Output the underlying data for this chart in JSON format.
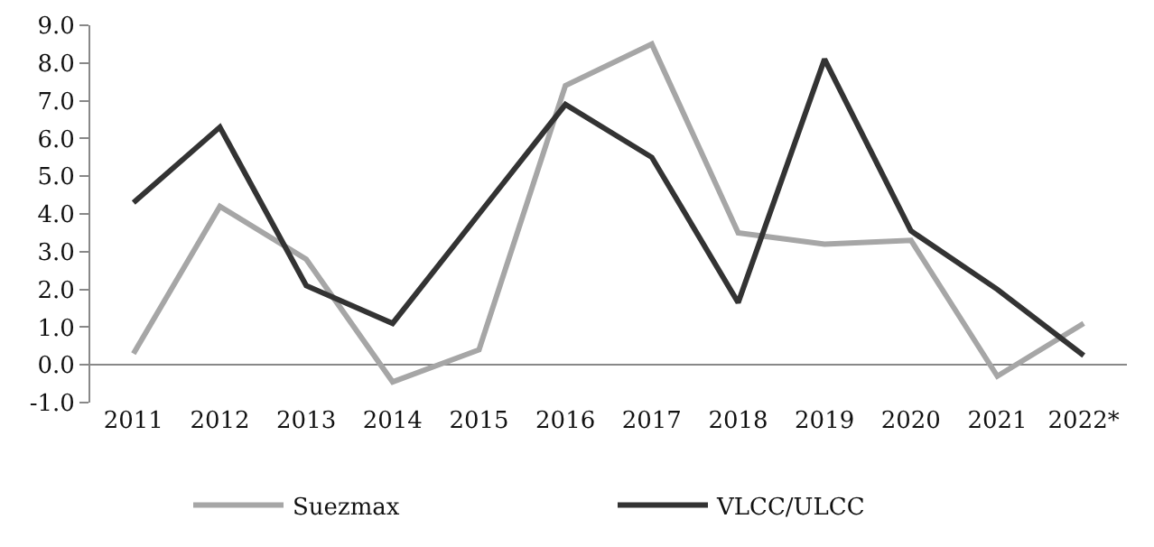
{
  "chart_data": {
    "type": "line",
    "categories": [
      "2011",
      "2012",
      "2013",
      "2014",
      "2015",
      "2016",
      "2017",
      "2018",
      "2019",
      "2020",
      "2021",
      "2022*"
    ],
    "series": [
      {
        "name": "Suezmax",
        "color": "#a6a6a6",
        "values": [
          0.3,
          4.2,
          2.8,
          -0.45,
          0.4,
          7.4,
          8.5,
          3.5,
          3.2,
          3.3,
          -0.3,
          1.1
        ]
      },
      {
        "name": "VLCC/ULCC",
        "color": "#333333",
        "values": [
          4.3,
          6.3,
          2.1,
          1.1,
          4.0,
          6.9,
          5.5,
          1.65,
          8.1,
          3.55,
          2.0,
          0.25
        ]
      }
    ],
    "ylim": [
      -1,
      9
    ],
    "yticks": [
      {
        "value": -1,
        "label": "-1.0"
      },
      {
        "value": 0,
        "label": "0.0"
      },
      {
        "value": 1,
        "label": "1.0"
      },
      {
        "value": 2,
        "label": "2.0"
      },
      {
        "value": 3,
        "label": "3.0"
      },
      {
        "value": 4,
        "label": "4.0"
      },
      {
        "value": 5,
        "label": "5.0"
      },
      {
        "value": 6,
        "label": "6.0"
      },
      {
        "value": 7,
        "label": "7.0"
      },
      {
        "value": 8,
        "label": "8.0"
      },
      {
        "value": 9,
        "label": "9.0"
      }
    ],
    "legend": "bottom",
    "marker": "none",
    "line_style": "solid"
  }
}
